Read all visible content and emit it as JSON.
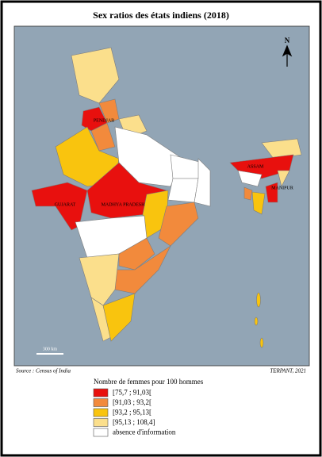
{
  "title": "Sex ratios des états indiens (2018)",
  "north": "N",
  "state_labels": [
    "PENDJAB",
    "GUJARAT",
    "MADHYA PRADESH",
    "ASSAM",
    "MANIPUR"
  ],
  "scale": "300 km",
  "source": "Source : Census of India",
  "credit": "TERPANT, 2021",
  "legend": {
    "title": "Nombre de femmes pour 100 hommes",
    "items": [
      {
        "label": "[75,7 ; 91,03[",
        "color": "#e8100e"
      },
      {
        "label": "[91,03 ; 93,2[",
        "color": "#f28a3c"
      },
      {
        "label": "[93,2 ; 95,13[",
        "color": "#f9c40e"
      },
      {
        "label": "[95,13 ; 108,4]",
        "color": "#fbdf8c"
      },
      {
        "label": "absence d'information",
        "color": "#ffffff"
      }
    ]
  }
}
